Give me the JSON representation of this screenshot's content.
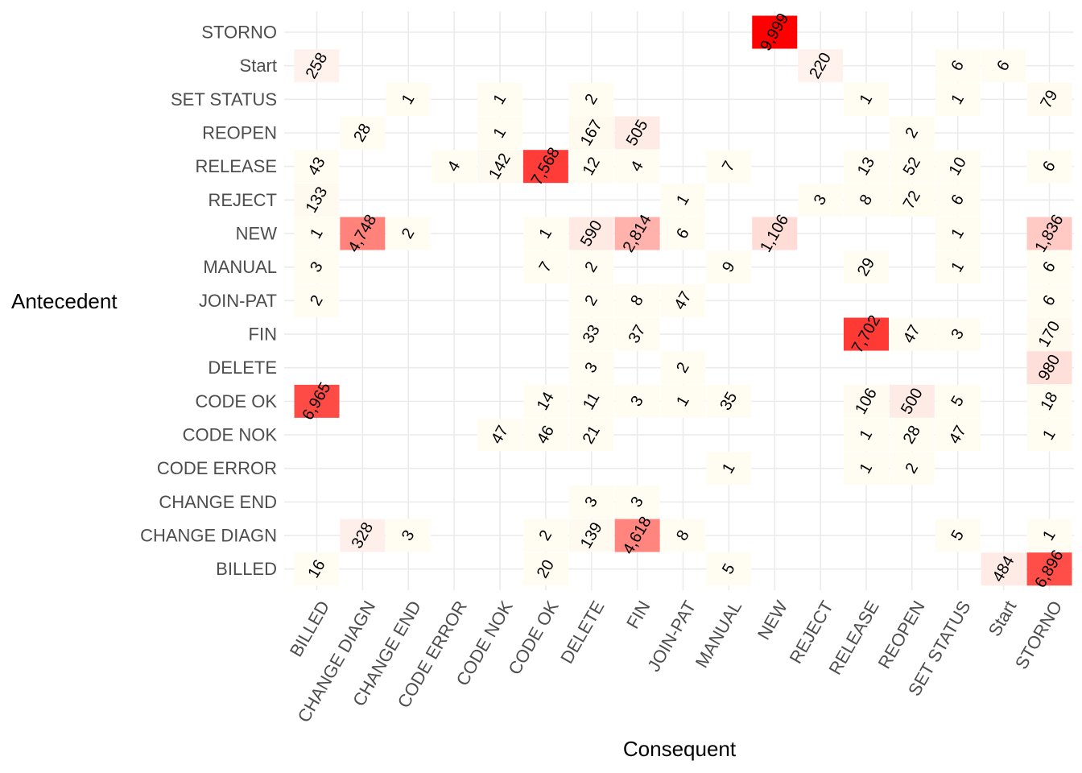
{
  "chart_data": {
    "type": "heatmap",
    "xlabel": "Consequent",
    "ylabel": "Antecedent",
    "x_categories": [
      "BILLED",
      "CHANGE DIAGN",
      "CHANGE END",
      "CODE ERROR",
      "CODE NOK",
      "CODE OK",
      "DELETE",
      "FIN",
      "JOIN-PAT",
      "MANUAL",
      "NEW",
      "REJECT",
      "RELEASE",
      "REOPEN",
      "SET STATUS",
      "Start",
      "STORNO"
    ],
    "y_categories_top_to_bottom": [
      "STORNO",
      "Start",
      "SET STATUS",
      "REOPEN",
      "RELEASE",
      "REJECT",
      "NEW",
      "MANUAL",
      "JOIN-PAT",
      "FIN",
      "DELETE",
      "CODE OK",
      "CODE NOK",
      "CODE ERROR",
      "CHANGE END",
      "CHANGE DIAGN",
      "BILLED"
    ],
    "color_scale": {
      "low": "#ffffff",
      "high": "#ff0000",
      "max_value": 9999
    },
    "grid": true,
    "legend": "none",
    "cells": [
      {
        "y": "STORNO",
        "x": "NEW",
        "value": 9999,
        "label": "9,999"
      },
      {
        "y": "Start",
        "x": "BILLED",
        "value": 258,
        "label": "258"
      },
      {
        "y": "Start",
        "x": "REJECT",
        "value": 220,
        "label": "220"
      },
      {
        "y": "Start",
        "x": "SET STATUS",
        "value": 6,
        "label": "6"
      },
      {
        "y": "Start",
        "x": "Start",
        "value": 6,
        "label": "6"
      },
      {
        "y": "SET STATUS",
        "x": "CHANGE END",
        "value": 1,
        "label": "1"
      },
      {
        "y": "SET STATUS",
        "x": "CODE NOK",
        "value": 1,
        "label": "1"
      },
      {
        "y": "SET STATUS",
        "x": "DELETE",
        "value": 2,
        "label": "2"
      },
      {
        "y": "SET STATUS",
        "x": "RELEASE",
        "value": 1,
        "label": "1"
      },
      {
        "y": "SET STATUS",
        "x": "SET STATUS",
        "value": 1,
        "label": "1"
      },
      {
        "y": "SET STATUS",
        "x": "STORNO",
        "value": 79,
        "label": "79"
      },
      {
        "y": "REOPEN",
        "x": "CHANGE DIAGN",
        "value": 28,
        "label": "28"
      },
      {
        "y": "REOPEN",
        "x": "CODE NOK",
        "value": 1,
        "label": "1"
      },
      {
        "y": "REOPEN",
        "x": "DELETE",
        "value": 167,
        "label": "167"
      },
      {
        "y": "REOPEN",
        "x": "FIN",
        "value": 505,
        "label": "505"
      },
      {
        "y": "REOPEN",
        "x": "REOPEN",
        "value": 2,
        "label": "2"
      },
      {
        "y": "RELEASE",
        "x": "BILLED",
        "value": 43,
        "label": "43"
      },
      {
        "y": "RELEASE",
        "x": "CODE ERROR",
        "value": 4,
        "label": "4"
      },
      {
        "y": "RELEASE",
        "x": "CODE NOK",
        "value": 142,
        "label": "142"
      },
      {
        "y": "RELEASE",
        "x": "CODE OK",
        "value": 7568,
        "label": "7,568"
      },
      {
        "y": "RELEASE",
        "x": "DELETE",
        "value": 12,
        "label": "12"
      },
      {
        "y": "RELEASE",
        "x": "FIN",
        "value": 4,
        "label": "4"
      },
      {
        "y": "RELEASE",
        "x": "MANUAL",
        "value": 7,
        "label": "7"
      },
      {
        "y": "RELEASE",
        "x": "RELEASE",
        "value": 13,
        "label": "13"
      },
      {
        "y": "RELEASE",
        "x": "REOPEN",
        "value": 52,
        "label": "52"
      },
      {
        "y": "RELEASE",
        "x": "SET STATUS",
        "value": 10,
        "label": "10"
      },
      {
        "y": "RELEASE",
        "x": "STORNO",
        "value": 6,
        "label": "6"
      },
      {
        "y": "REJECT",
        "x": "BILLED",
        "value": 133,
        "label": "133"
      },
      {
        "y": "REJECT",
        "x": "JOIN-PAT",
        "value": 1,
        "label": "1"
      },
      {
        "y": "REJECT",
        "x": "REJECT",
        "value": 3,
        "label": "3"
      },
      {
        "y": "REJECT",
        "x": "RELEASE",
        "value": 8,
        "label": "8"
      },
      {
        "y": "REJECT",
        "x": "REOPEN",
        "value": 72,
        "label": "72"
      },
      {
        "y": "REJECT",
        "x": "SET STATUS",
        "value": 6,
        "label": "6"
      },
      {
        "y": "NEW",
        "x": "BILLED",
        "value": 1,
        "label": "1"
      },
      {
        "y": "NEW",
        "x": "CHANGE DIAGN",
        "value": 4748,
        "label": "4,748"
      },
      {
        "y": "NEW",
        "x": "CHANGE END",
        "value": 2,
        "label": "2"
      },
      {
        "y": "NEW",
        "x": "CODE OK",
        "value": 1,
        "label": "1"
      },
      {
        "y": "NEW",
        "x": "DELETE",
        "value": 590,
        "label": "590"
      },
      {
        "y": "NEW",
        "x": "FIN",
        "value": 2814,
        "label": "2,814"
      },
      {
        "y": "NEW",
        "x": "JOIN-PAT",
        "value": 6,
        "label": "6"
      },
      {
        "y": "NEW",
        "x": "NEW",
        "value": 1106,
        "label": "1,106"
      },
      {
        "y": "NEW",
        "x": "SET STATUS",
        "value": 1,
        "label": "1"
      },
      {
        "y": "NEW",
        "x": "STORNO",
        "value": 1836,
        "label": "1,836"
      },
      {
        "y": "MANUAL",
        "x": "BILLED",
        "value": 3,
        "label": "3"
      },
      {
        "y": "MANUAL",
        "x": "CODE OK",
        "value": 7,
        "label": "7"
      },
      {
        "y": "MANUAL",
        "x": "DELETE",
        "value": 2,
        "label": "2"
      },
      {
        "y": "MANUAL",
        "x": "MANUAL",
        "value": 9,
        "label": "9"
      },
      {
        "y": "MANUAL",
        "x": "RELEASE",
        "value": 29,
        "label": "29"
      },
      {
        "y": "MANUAL",
        "x": "SET STATUS",
        "value": 1,
        "label": "1"
      },
      {
        "y": "MANUAL",
        "x": "STORNO",
        "value": 6,
        "label": "6"
      },
      {
        "y": "JOIN-PAT",
        "x": "BILLED",
        "value": 2,
        "label": "2"
      },
      {
        "y": "JOIN-PAT",
        "x": "DELETE",
        "value": 2,
        "label": "2"
      },
      {
        "y": "JOIN-PAT",
        "x": "FIN",
        "value": 8,
        "label": "8"
      },
      {
        "y": "JOIN-PAT",
        "x": "JOIN-PAT",
        "value": 47,
        "label": "47"
      },
      {
        "y": "JOIN-PAT",
        "x": "STORNO",
        "value": 6,
        "label": "6"
      },
      {
        "y": "FIN",
        "x": "DELETE",
        "value": 33,
        "label": "33"
      },
      {
        "y": "FIN",
        "x": "FIN",
        "value": 37,
        "label": "37"
      },
      {
        "y": "FIN",
        "x": "RELEASE",
        "value": 7702,
        "label": "7,702"
      },
      {
        "y": "FIN",
        "x": "REOPEN",
        "value": 47,
        "label": "47"
      },
      {
        "y": "FIN",
        "x": "SET STATUS",
        "value": 3,
        "label": "3"
      },
      {
        "y": "FIN",
        "x": "STORNO",
        "value": 170,
        "label": "170"
      },
      {
        "y": "DELETE",
        "x": "DELETE",
        "value": 3,
        "label": "3"
      },
      {
        "y": "DELETE",
        "x": "JOIN-PAT",
        "value": 2,
        "label": "2"
      },
      {
        "y": "DELETE",
        "x": "STORNO",
        "value": 980,
        "label": "980"
      },
      {
        "y": "CODE OK",
        "x": "BILLED",
        "value": 6965,
        "label": "6,965"
      },
      {
        "y": "CODE OK",
        "x": "CODE OK",
        "value": 14,
        "label": "14"
      },
      {
        "y": "CODE OK",
        "x": "DELETE",
        "value": 11,
        "label": "11"
      },
      {
        "y": "CODE OK",
        "x": "FIN",
        "value": 3,
        "label": "3"
      },
      {
        "y": "CODE OK",
        "x": "JOIN-PAT",
        "value": 1,
        "label": "1"
      },
      {
        "y": "CODE OK",
        "x": "MANUAL",
        "value": 35,
        "label": "35"
      },
      {
        "y": "CODE OK",
        "x": "RELEASE",
        "value": 106,
        "label": "106"
      },
      {
        "y": "CODE OK",
        "x": "REOPEN",
        "value": 500,
        "label": "500"
      },
      {
        "y": "CODE OK",
        "x": "SET STATUS",
        "value": 5,
        "label": "5"
      },
      {
        "y": "CODE OK",
        "x": "STORNO",
        "value": 18,
        "label": "18"
      },
      {
        "y": "CODE NOK",
        "x": "CODE NOK",
        "value": 47,
        "label": "47"
      },
      {
        "y": "CODE NOK",
        "x": "CODE OK",
        "value": 46,
        "label": "46"
      },
      {
        "y": "CODE NOK",
        "x": "DELETE",
        "value": 21,
        "label": "21"
      },
      {
        "y": "CODE NOK",
        "x": "RELEASE",
        "value": 1,
        "label": "1"
      },
      {
        "y": "CODE NOK",
        "x": "REOPEN",
        "value": 28,
        "label": "28"
      },
      {
        "y": "CODE NOK",
        "x": "SET STATUS",
        "value": 47,
        "label": "47"
      },
      {
        "y": "CODE NOK",
        "x": "STORNO",
        "value": 1,
        "label": "1"
      },
      {
        "y": "CODE ERROR",
        "x": "MANUAL",
        "value": 1,
        "label": "1"
      },
      {
        "y": "CODE ERROR",
        "x": "RELEASE",
        "value": 1,
        "label": "1"
      },
      {
        "y": "CODE ERROR",
        "x": "REOPEN",
        "value": 2,
        "label": "2"
      },
      {
        "y": "CHANGE END",
        "x": "DELETE",
        "value": 3,
        "label": "3"
      },
      {
        "y": "CHANGE END",
        "x": "FIN",
        "value": 3,
        "label": "3"
      },
      {
        "y": "CHANGE DIAGN",
        "x": "CHANGE DIAGN",
        "value": 328,
        "label": "328"
      },
      {
        "y": "CHANGE DIAGN",
        "x": "CHANGE END",
        "value": 3,
        "label": "3"
      },
      {
        "y": "CHANGE DIAGN",
        "x": "CODE OK",
        "value": 2,
        "label": "2"
      },
      {
        "y": "CHANGE DIAGN",
        "x": "DELETE",
        "value": 139,
        "label": "139"
      },
      {
        "y": "CHANGE DIAGN",
        "x": "FIN",
        "value": 4618,
        "label": "4,618"
      },
      {
        "y": "CHANGE DIAGN",
        "x": "JOIN-PAT",
        "value": 8,
        "label": "8"
      },
      {
        "y": "CHANGE DIAGN",
        "x": "SET STATUS",
        "value": 5,
        "label": "5"
      },
      {
        "y": "CHANGE DIAGN",
        "x": "STORNO",
        "value": 1,
        "label": "1"
      },
      {
        "y": "BILLED",
        "x": "BILLED",
        "value": 16,
        "label": "16"
      },
      {
        "y": "BILLED",
        "x": "CODE OK",
        "value": 20,
        "label": "20"
      },
      {
        "y": "BILLED",
        "x": "MANUAL",
        "value": 5,
        "label": "5"
      },
      {
        "y": "BILLED",
        "x": "Start",
        "value": 484,
        "label": "484"
      },
      {
        "y": "BILLED",
        "x": "STORNO",
        "value": 6896,
        "label": "6,896"
      }
    ]
  }
}
